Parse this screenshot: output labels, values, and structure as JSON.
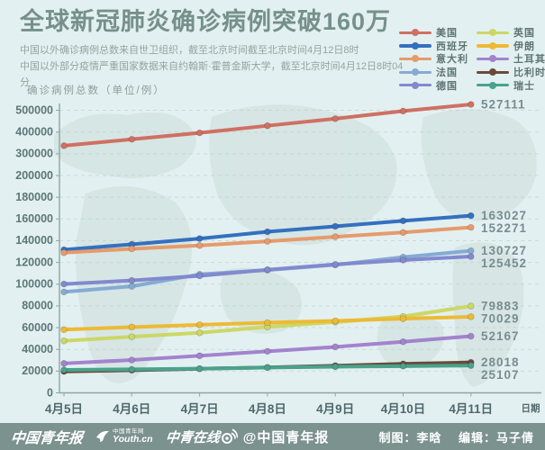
{
  "title": "全球新冠肺炎确诊病例突破160万",
  "subtitle_lines": {
    "line1": "中国以外确诊病例总数来自世卫组织，截至北京时间截至北京时间4月12日8时",
    "line2": "中国以外部分疫情严重国家数据来自约翰斯·霍普金斯大学，截至北京时间4月12日8时04分"
  },
  "y_axis_caption": "确诊病例总数（单位/例）",
  "colors": {
    "background": "#e3f0f1",
    "map_land": "#cddfdb",
    "title_text": "#76908b",
    "axis": "#8fa5a3",
    "grid": "#b7c9c6",
    "footer_bar": "#7b928f"
  },
  "chart_data": {
    "type": "line",
    "title": "全球新冠肺炎确诊病例突破160万",
    "xlabel": "日期",
    "ylabel": "确诊病例总数（单位/例）",
    "categories": [
      "4月5日",
      "4月6日",
      "4月7日",
      "4月8日",
      "4月9日",
      "4月10日",
      "4月11日"
    ],
    "y_ticks": [
      500000,
      400000,
      300000,
      200000,
      180000,
      160000,
      140000,
      120000,
      100000,
      80000,
      60000,
      40000,
      20000,
      0
    ],
    "y_axis_note": "non-linear axis: 20000 per step up to 200000, then 100000 per step to 500000",
    "grid": "horizontal-dashed",
    "legend_position": "top-right",
    "series": [
      {
        "name": "美国",
        "color": "#cf7063",
        "values": [
          337072,
          366667,
          396223,
          429052,
          461437,
          496535,
          527111
        ],
        "end_label": "527111"
      },
      {
        "name": "西班牙",
        "color": "#3470bf",
        "values": [
          131646,
          136675,
          141942,
          148220,
          153222,
          158273,
          163027
        ],
        "end_label": "163027"
      },
      {
        "name": "意大利",
        "color": "#e59b6c",
        "values": [
          128948,
          132547,
          135586,
          139422,
          143626,
          147577,
          152271
        ],
        "end_label": "152271"
      },
      {
        "name": "法国",
        "color": "#85abd3",
        "values": [
          92839,
          98010,
          109069,
          112950,
          117749,
          124869,
          130727
        ],
        "end_label": "130727"
      },
      {
        "name": "德国",
        "color": "#8289cf",
        "values": [
          100123,
          103374,
          107663,
          113296,
          118181,
          122171,
          125452
        ],
        "end_label": "125452"
      },
      {
        "name": "英国",
        "color": "#ccd766",
        "values": [
          47806,
          51608,
          55242,
          60733,
          65077,
          70272,
          79883
        ],
        "end_label": "79883"
      },
      {
        "name": "伊朗",
        "color": "#edba35",
        "values": [
          58226,
          60500,
          62589,
          64586,
          66220,
          68192,
          70029
        ],
        "end_label": "70029"
      },
      {
        "name": "土耳其",
        "color": "#a383cd",
        "values": [
          27069,
          30217,
          34109,
          38226,
          42282,
          47029,
          52167
        ],
        "end_label": "52167"
      },
      {
        "name": "比利时",
        "color": "#6c4a39",
        "values": [
          19691,
          20814,
          22194,
          23403,
          24983,
          26667,
          28018
        ],
        "end_label": "28018"
      },
      {
        "name": "瑞士",
        "color": "#4aa28c",
        "values": [
          21100,
          21657,
          22253,
          23280,
          24051,
          24551,
          25107
        ],
        "end_label": "25107"
      }
    ]
  },
  "footer": {
    "logo_paper": "中国青年报",
    "logo_web_cn": "中国青年网",
    "logo_web_en": "Youth.cn",
    "logo_online": "中青在线",
    "weibo_handle": "@中国青年报",
    "credit_design": "制图：李晗",
    "credit_editor": "编辑：马子倩"
  }
}
